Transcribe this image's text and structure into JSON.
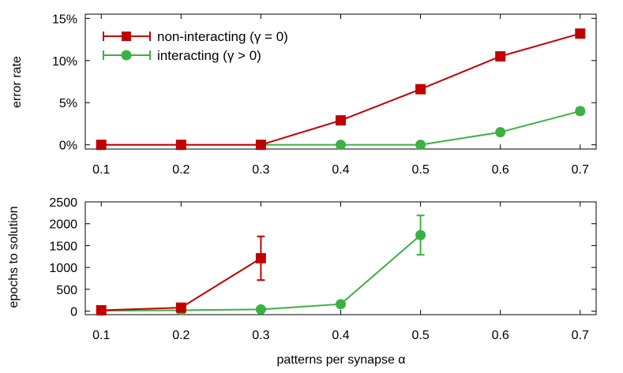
{
  "chart_data": [
    {
      "id": "top",
      "type": "line",
      "ylabel": "error rate",
      "xlabel": "",
      "xlim": [
        0.08,
        0.72
      ],
      "ylim": [
        -0.5,
        15.5
      ],
      "x_ticks": [
        0.1,
        0.2,
        0.3,
        0.4,
        0.5,
        0.6,
        0.7
      ],
      "x_tick_labels": [
        "0.1",
        "0.2",
        "0.3",
        "0.4",
        "0.5",
        "0.6",
        "0.7"
      ],
      "y_ticks": [
        0,
        5,
        10,
        15
      ],
      "y_tick_labels": [
        "0%",
        "5%",
        "10%",
        "15%"
      ],
      "legend": {
        "position": "top-left"
      },
      "series": [
        {
          "name": "non-interacting (γ = 0)",
          "color": "#c00000",
          "marker": "square",
          "x": [
            0.1,
            0.2,
            0.3,
            0.4,
            0.5,
            0.6,
            0.7
          ],
          "values": [
            0,
            0,
            0,
            2.9,
            6.6,
            10.5,
            13.2
          ],
          "errors": [
            0,
            0,
            0,
            0.2,
            0.5,
            0.5,
            0.4
          ]
        },
        {
          "name": "interacting (γ > 0)",
          "color": "#3cb043",
          "marker": "circle",
          "x": [
            0.1,
            0.2,
            0.3,
            0.4,
            0.5,
            0.6,
            0.7
          ],
          "values": [
            0,
            0,
            0,
            0,
            0,
            1.5,
            4.0
          ],
          "errors": [
            0,
            0,
            0,
            0,
            0,
            0.2,
            0.4
          ]
        }
      ]
    },
    {
      "id": "bottom",
      "type": "line",
      "ylabel": "epochs to solution",
      "xlabel": "patterns per synapse α",
      "xlim": [
        0.08,
        0.72
      ],
      "ylim": [
        -80,
        2500
      ],
      "x_ticks": [
        0.1,
        0.2,
        0.3,
        0.4,
        0.5,
        0.6,
        0.7
      ],
      "x_tick_labels": [
        "0.1",
        "0.2",
        "0.3",
        "0.4",
        "0.5",
        "0.6",
        "0.7"
      ],
      "y_ticks": [
        0,
        500,
        1000,
        1500,
        2000,
        2500
      ],
      "y_tick_labels": [
        "0",
        "500",
        "1000",
        "1500",
        "2000",
        "2500"
      ],
      "series": [
        {
          "name": "non-interacting (γ = 0)",
          "color": "#c00000",
          "marker": "square",
          "x": [
            0.1,
            0.2,
            0.3
          ],
          "values": [
            20,
            80,
            1210
          ],
          "errors": [
            0,
            0,
            500
          ]
        },
        {
          "name": "interacting (γ > 0)",
          "color": "#3cb043",
          "marker": "circle",
          "x": [
            0.1,
            0.2,
            0.3,
            0.4,
            0.5
          ],
          "values": [
            10,
            20,
            40,
            160,
            1740
          ],
          "errors": [
            0,
            0,
            0,
            0,
            450
          ]
        }
      ]
    }
  ]
}
